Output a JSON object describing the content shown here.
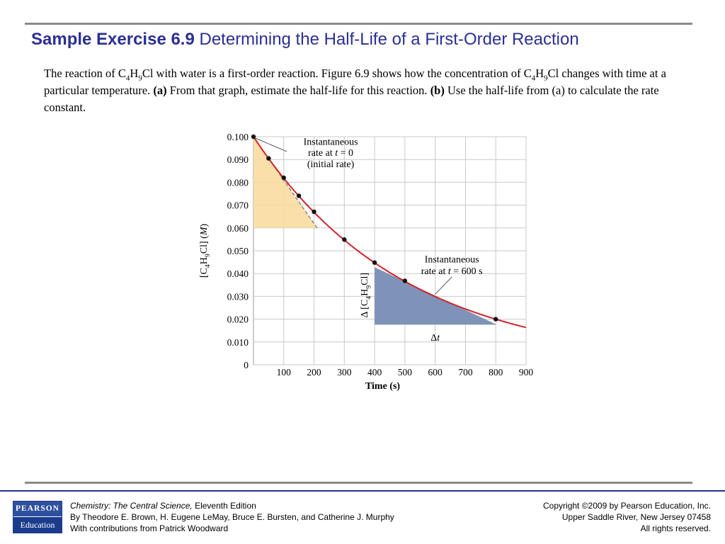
{
  "title": {
    "bold": "Sample Exercise 6.9",
    "rest": " Determining the Half-Life of a First-Order Reaction"
  },
  "problem": {
    "p1": "The reaction of C",
    "p2": "H",
    "p3": "Cl with water is a first-order reaction. Figure 6.9 shows how the concentration of C",
    "p4": "H",
    "p5": "Cl changes with time at a particular temperature.",
    "a_label": "(a)",
    "a_text": " From that graph, estimate the half-life for this reaction.",
    "b_label": "(b)",
    "b_text": " Use the half-life from (a) to calculate the rate constant.",
    "sub4": "4",
    "sub9": "9"
  },
  "chart_data": {
    "type": "line",
    "xlabel": "Time (s)",
    "ylabel_parts": [
      "[C",
      "4",
      "H",
      "9",
      "Cl] (",
      "M",
      ")"
    ],
    "xlim": [
      0,
      900
    ],
    "ylim": [
      0,
      0.1
    ],
    "x_ticks": [
      100,
      200,
      300,
      400,
      500,
      600,
      700,
      800,
      900
    ],
    "y_ticks": [
      0,
      0.01,
      0.02,
      0.03,
      0.04,
      0.05,
      0.06,
      0.07,
      0.08,
      0.09,
      0.1
    ],
    "y_tick_labels": [
      "0",
      "0.010",
      "0.020",
      "0.030",
      "0.040",
      "0.050",
      "0.060",
      "0.070",
      "0.080",
      "0.090",
      "0.100"
    ],
    "grid": true,
    "series": [
      {
        "points": [
          {
            "x": 0,
            "y": 0.1
          },
          {
            "x": 50,
            "y": 0.0905
          },
          {
            "x": 100,
            "y": 0.082
          },
          {
            "x": 150,
            "y": 0.0741
          },
          {
            "x": 200,
            "y": 0.0671
          },
          {
            "x": 300,
            "y": 0.0549
          },
          {
            "x": 400,
            "y": 0.0448
          },
          {
            "x": 500,
            "y": 0.0368
          },
          {
            "x": 800,
            "y": 0.02
          }
        ],
        "color": "#d0232a"
      }
    ],
    "initial_tangent": {
      "x": [
        0,
        210
      ],
      "y": [
        0.1,
        0.06
      ],
      "fill": "#f9dc9f"
    },
    "tangent_600": {
      "x": [
        400,
        800
      ],
      "y": [
        0.0426,
        0.0176
      ],
      "fill": "#7f93b9"
    },
    "annotations": {
      "initial_rate": [
        "Instantaneous",
        "rate at ",
        "t",
        " = 0",
        "(initial rate)"
      ],
      "rate_600": [
        "Instantaneous",
        "rate at ",
        "t",
        " = 600 s"
      ],
      "delta_t": [
        "Δ",
        "t"
      ],
      "delta_conc": [
        "Δ [C",
        "4",
        "H",
        "9",
        "Cl]"
      ]
    }
  },
  "footer": {
    "logo_top": "PEARSON",
    "logo_bottom": "Education",
    "book_title": "Chemistry: The Central Science,",
    "edition": " Eleventh Edition",
    "authors": "By Theodore E. Brown, H. Eugene LeMay, Bruce E. Bursten, and Catherine J. Murphy",
    "contrib": "With contributions from Patrick Woodward",
    "copyright": "Copyright ©2009 by Pearson Education, Inc.",
    "address": "Upper Saddle River, New Jersey 07458",
    "rights": "All rights reserved."
  }
}
